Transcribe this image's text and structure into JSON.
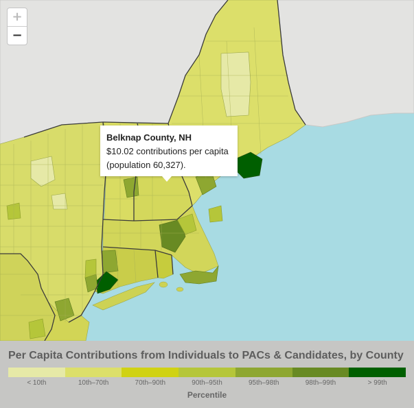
{
  "map": {
    "zoom_in_label": "+",
    "zoom_out_label": "−"
  },
  "tooltip": {
    "county": "Belknap County, NH",
    "line1": "$10.02 contributions per capita",
    "line2": "(population 60,327)."
  },
  "legend": {
    "title": "Per Capita Contributions from Individuals to PACs & Candidates, by County",
    "axis_label": "Percentile",
    "bins": [
      {
        "label": "< 10th",
        "color": "#e6e9a7"
      },
      {
        "label": "10th–70th",
        "color": "#dcdf6a"
      },
      {
        "label": "70th–90th",
        "color": "#d0d213"
      },
      {
        "label": "90th–95th",
        "color": "#b5c63a"
      },
      {
        "label": "95th–98th",
        "color": "#8ea731"
      },
      {
        "label": "98th–99th",
        "color": "#688a23"
      },
      {
        "label": "> 99th",
        "color": "#005f00"
      }
    ]
  },
  "colors": {
    "water": "#a8dbe3",
    "foreign_land": "#e3e3e1",
    "state_border": "#3a3a3a"
  }
}
